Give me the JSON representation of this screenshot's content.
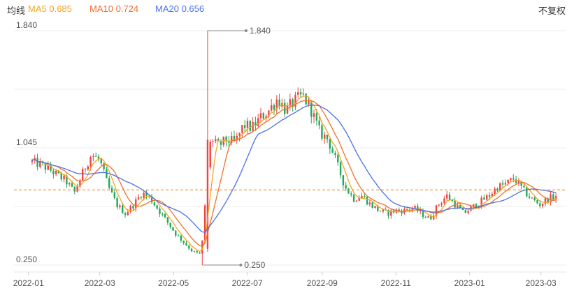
{
  "header": {
    "title": "均线",
    "adjust_label": "不复权",
    "legend": [
      {
        "name": "MA5",
        "value": "0.685",
        "color": "#f5a623"
      },
      {
        "name": "MA10",
        "value": "0.724",
        "color": "#f0702c"
      },
      {
        "name": "MA20",
        "value": "0.656",
        "color": "#4a72e8"
      }
    ]
  },
  "colors": {
    "up": "#ee4444",
    "down": "#22a85a",
    "grid": "#eeeeee",
    "axis_text": "#555555",
    "ref_line": "#f07a1a",
    "annotation": "#888888"
  },
  "chart_data": {
    "type": "candlestick",
    "ylim": [
      0.25,
      1.84
    ],
    "y_ticks": [
      "1.840",
      "1.045",
      "0.250"
    ],
    "x_ticks": [
      "2022-01",
      "2022-03",
      "2022-05",
      "2022-07",
      "2022-09",
      "2022-11",
      "2023-01",
      "2023-03"
    ],
    "reference_price": 0.76,
    "high": {
      "value": "1.840"
    },
    "low": {
      "value": "0.250"
    },
    "series": [
      {
        "name": "MA5",
        "color": "#f5a623"
      },
      {
        "name": "MA10",
        "color": "#f0702c"
      },
      {
        "name": "MA20",
        "color": "#4a72e8"
      }
    ],
    "candles": [
      [
        "2022-01-04",
        0.95
      ],
      [
        "2022-01-11",
        0.93
      ],
      [
        "2022-01-18",
        0.9
      ],
      [
        "2022-01-25",
        0.86
      ],
      [
        "2022-02-01",
        0.82
      ],
      [
        "2022-02-08",
        0.74
      ],
      [
        "2022-02-15",
        0.88
      ],
      [
        "2022-02-22",
        1.0
      ],
      [
        "2022-03-01",
        0.96
      ],
      [
        "2022-03-08",
        0.78
      ],
      [
        "2022-03-15",
        0.66
      ],
      [
        "2022-03-22",
        0.6
      ],
      [
        "2022-03-29",
        0.66
      ],
      [
        "2022-04-05",
        0.74
      ],
      [
        "2022-04-12",
        0.7
      ],
      [
        "2022-04-19",
        0.62
      ],
      [
        "2022-04-26",
        0.54
      ],
      [
        "2022-05-03",
        0.46
      ],
      [
        "2022-05-10",
        0.4
      ],
      [
        "2022-05-17",
        0.34
      ],
      [
        "2022-05-24",
        0.32
      ],
      [
        "2022-05-31",
        1.1
      ],
      [
        "2022-06-07",
        1.06
      ],
      [
        "2022-06-14",
        1.1
      ],
      [
        "2022-06-21",
        1.08
      ],
      [
        "2022-06-28",
        1.2
      ],
      [
        "2022-07-05",
        1.18
      ],
      [
        "2022-07-12",
        1.25
      ],
      [
        "2022-07-19",
        1.3
      ],
      [
        "2022-07-26",
        1.38
      ],
      [
        "2022-08-02",
        1.3
      ],
      [
        "2022-08-09",
        1.36
      ],
      [
        "2022-08-16",
        1.4
      ],
      [
        "2022-08-23",
        1.3
      ],
      [
        "2022-08-30",
        1.15
      ],
      [
        "2022-09-06",
        1.1
      ],
      [
        "2022-09-13",
        0.94
      ],
      [
        "2022-09-20",
        0.78
      ],
      [
        "2022-09-27",
        0.7
      ],
      [
        "2022-10-04",
        0.72
      ],
      [
        "2022-10-11",
        0.66
      ],
      [
        "2022-10-18",
        0.62
      ],
      [
        "2022-10-25",
        0.6
      ],
      [
        "2022-11-01",
        0.62
      ],
      [
        "2022-11-08",
        0.62
      ],
      [
        "2022-11-15",
        0.64
      ],
      [
        "2022-11-22",
        0.6
      ],
      [
        "2022-11-29",
        0.56
      ],
      [
        "2022-12-06",
        0.66
      ],
      [
        "2022-12-13",
        0.72
      ],
      [
        "2022-12-20",
        0.66
      ],
      [
        "2022-12-27",
        0.6
      ],
      [
        "2023-01-03",
        0.64
      ],
      [
        "2023-01-10",
        0.68
      ],
      [
        "2023-01-17",
        0.72
      ],
      [
        "2023-01-24",
        0.78
      ],
      [
        "2023-01-31",
        0.8
      ],
      [
        "2023-02-07",
        0.84
      ],
      [
        "2023-02-14",
        0.76
      ],
      [
        "2023-02-21",
        0.7
      ],
      [
        "2023-02-28",
        0.66
      ],
      [
        "2023-03-07",
        0.7
      ],
      [
        "2023-03-14",
        0.72
      ]
    ]
  }
}
